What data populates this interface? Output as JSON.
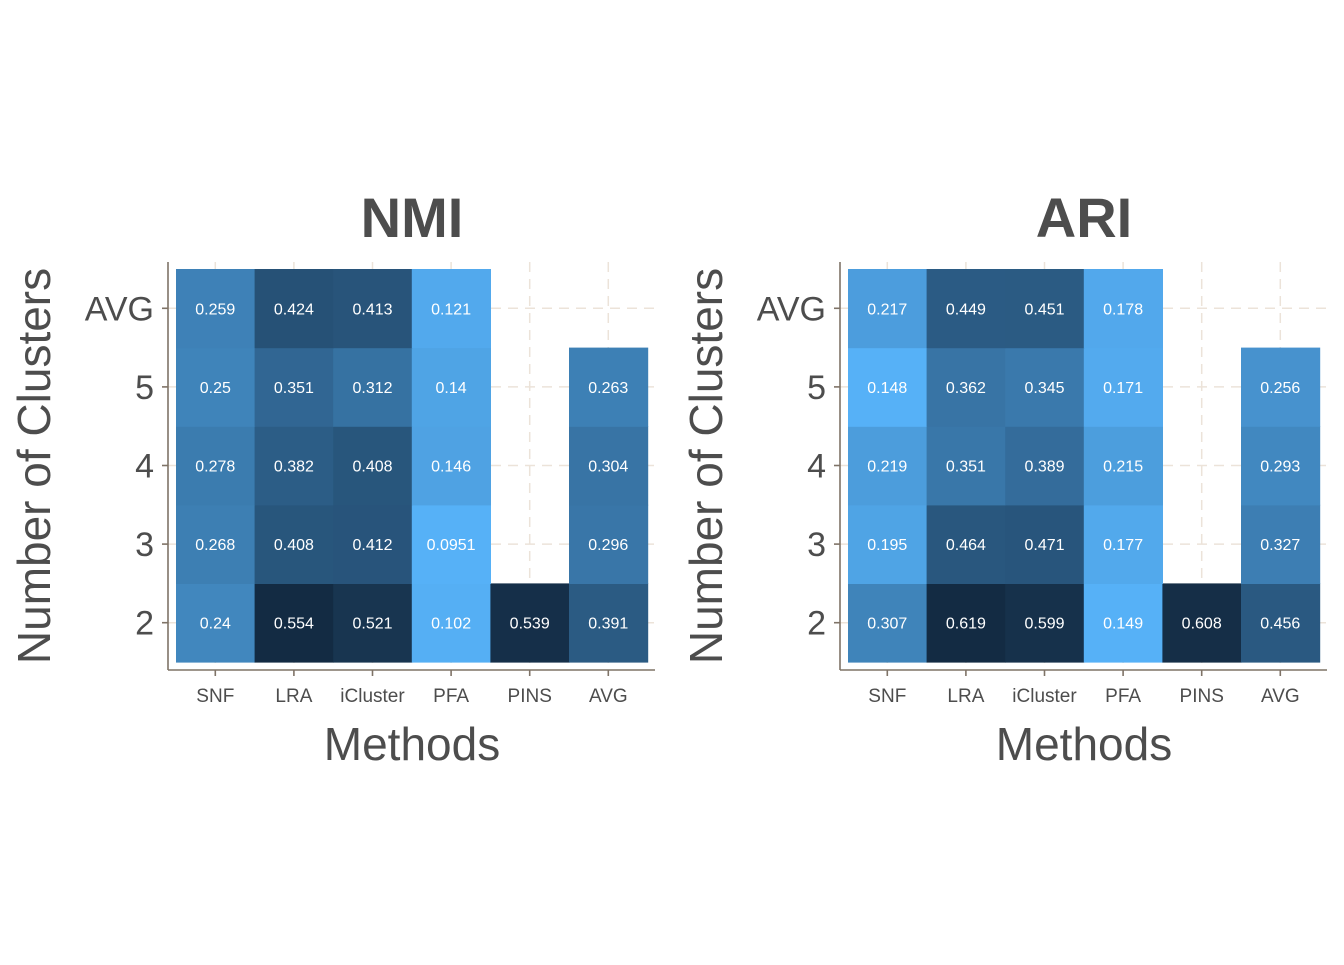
{
  "chart_data": [
    {
      "type": "heatmap",
      "title": "NMI",
      "xlabel": "Methods",
      "ylabel": "Number of Clusters",
      "x_categories": [
        "SNF",
        "LRA",
        "iCluster",
        "PFA",
        "PINS",
        "AVG"
      ],
      "y_categories": [
        "2",
        "3",
        "4",
        "5",
        "AVG"
      ],
      "values": [
        [
          0.24,
          0.554,
          0.521,
          0.102,
          0.539,
          0.391
        ],
        [
          0.268,
          0.408,
          0.412,
          0.0951,
          null,
          0.296
        ],
        [
          0.278,
          0.382,
          0.408,
          0.146,
          null,
          0.304
        ],
        [
          0.25,
          0.351,
          0.312,
          0.14,
          null,
          0.263
        ],
        [
          0.259,
          0.424,
          0.413,
          0.121,
          null,
          null
        ]
      ],
      "labels": [
        [
          "0.24",
          "0.554",
          "0.521",
          "0.102",
          "0.539",
          "0.391"
        ],
        [
          "0.268",
          "0.408",
          "0.412",
          "0.0951",
          "",
          "0.296"
        ],
        [
          "0.278",
          "0.382",
          "0.408",
          "0.146",
          "",
          "0.304"
        ],
        [
          "0.25",
          "0.351",
          "0.312",
          "0.14",
          "",
          "0.263"
        ],
        [
          "0.259",
          "0.424",
          "0.413",
          "0.121",
          "",
          ""
        ]
      ],
      "grid": true,
      "legend": "none",
      "color_scale": {
        "low": "#56b1f7",
        "high": "#132b43"
      }
    },
    {
      "type": "heatmap",
      "title": "ARI",
      "xlabel": "Methods",
      "ylabel": "Number of Clusters",
      "x_categories": [
        "SNF",
        "LRA",
        "iCluster",
        "PFA",
        "PINS",
        "AVG"
      ],
      "y_categories": [
        "2",
        "3",
        "4",
        "5",
        "AVG"
      ],
      "values": [
        [
          0.307,
          0.619,
          0.599,
          0.149,
          0.608,
          0.456
        ],
        [
          0.195,
          0.464,
          0.471,
          0.177,
          null,
          0.327
        ],
        [
          0.219,
          0.351,
          0.389,
          0.215,
          null,
          0.293
        ],
        [
          0.148,
          0.362,
          0.345,
          0.171,
          null,
          0.256
        ],
        [
          0.217,
          0.449,
          0.451,
          0.178,
          null,
          null
        ]
      ],
      "labels": [
        [
          "0.307",
          "0.619",
          "0.599",
          "0.149",
          "0.608",
          "0.456"
        ],
        [
          "0.195",
          "0.464",
          "0.471",
          "0.177",
          "",
          "0.327"
        ],
        [
          "0.219",
          "0.351",
          "0.389",
          "0.215",
          "",
          "0.293"
        ],
        [
          "0.148",
          "0.362",
          "0.345",
          "0.171",
          "",
          "0.256"
        ],
        [
          "0.217",
          "0.449",
          "0.451",
          "0.178",
          "",
          ""
        ]
      ],
      "grid": true,
      "legend": "none",
      "color_scale": {
        "low": "#56b1f7",
        "high": "#132b43"
      }
    }
  ],
  "colors": {
    "text": "#4d4d4d",
    "axis_line": "#7f7367",
    "grid": "#ece3d9",
    "cell_text": "#ffffff"
  }
}
